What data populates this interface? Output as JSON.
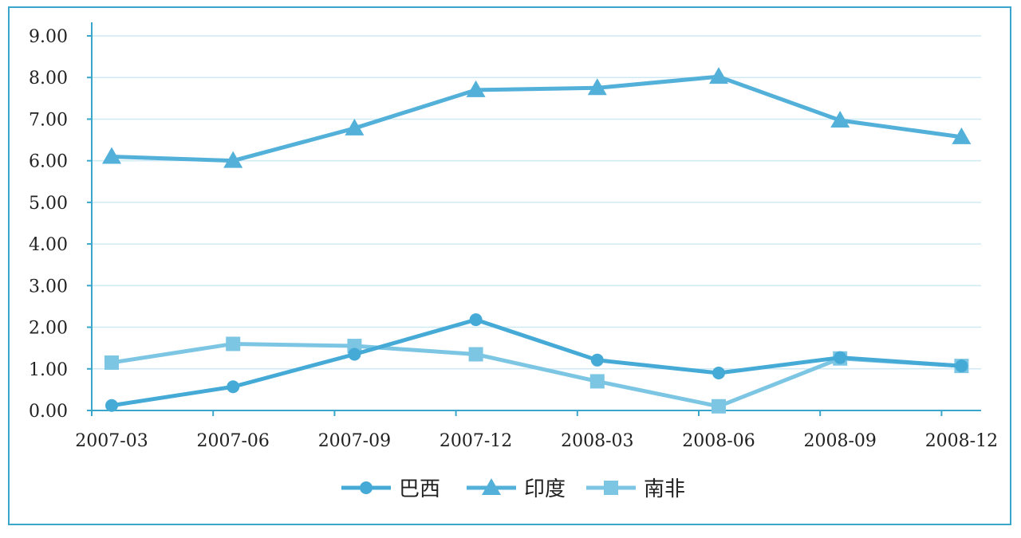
{
  "chart_data": {
    "type": "line",
    "title": "",
    "xlabel": "",
    "ylabel": "",
    "categories": [
      "2007-03",
      "2007-06",
      "2007-09",
      "2007-12",
      "2008-03",
      "2008-06",
      "2008-09",
      "2008-12"
    ],
    "ylim": [
      0,
      9
    ],
    "yticks": [
      "0.00",
      "1.00",
      "2.00",
      "3.00",
      "4.00",
      "5.00",
      "6.00",
      "7.00",
      "8.00",
      "9.00"
    ],
    "grid": true,
    "legend_position": "bottom-center",
    "series": [
      {
        "name": "巴西",
        "marker": "circle",
        "color": "#45aad6",
        "values": [
          0.12,
          0.57,
          1.35,
          2.18,
          1.21,
          0.9,
          1.27,
          1.07
        ]
      },
      {
        "name": "印度",
        "marker": "triangle",
        "color": "#52b0d9",
        "values": [
          6.1,
          6.0,
          6.78,
          7.7,
          7.75,
          8.02,
          6.97,
          6.57
        ]
      },
      {
        "name": "南非",
        "marker": "square",
        "color": "#7cc6e4",
        "values": [
          1.15,
          1.6,
          1.55,
          1.35,
          0.7,
          0.1,
          1.25,
          1.07
        ]
      }
    ]
  }
}
